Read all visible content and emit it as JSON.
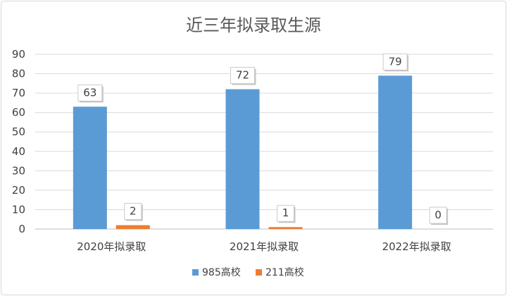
{
  "chart_data": {
    "type": "bar",
    "title": "近三年拟录取生源",
    "categories": [
      "2020年拟录取",
      "2021年拟录取",
      "2022年拟录取"
    ],
    "series": [
      {
        "name": "985高校",
        "values": [
          63,
          72,
          79
        ],
        "color": "#5b9bd5"
      },
      {
        "name": "211高校",
        "values": [
          2,
          1,
          0
        ],
        "color": "#ed7d31"
      }
    ],
    "ylim": [
      0,
      90
    ],
    "yticks": [
      0,
      10,
      20,
      30,
      40,
      50,
      60,
      70,
      80,
      90
    ],
    "grid": true,
    "legend": "bottom"
  }
}
